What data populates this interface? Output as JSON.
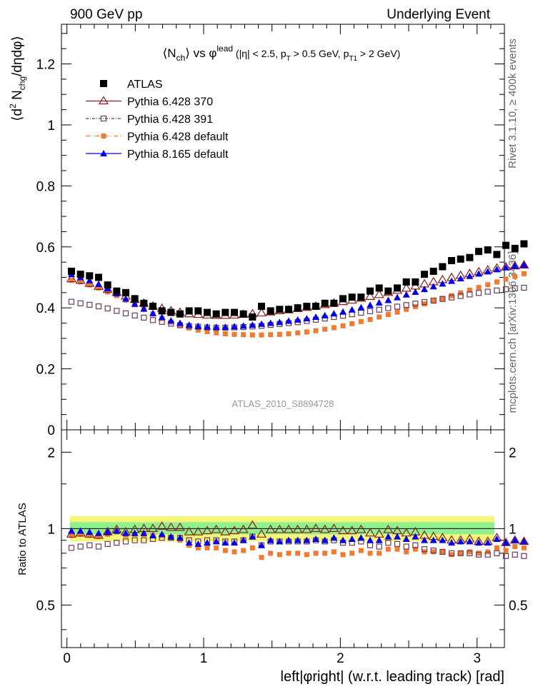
{
  "header": {
    "left": "900 GeV pp",
    "right": "Underlying Event",
    "side_top": "Rivet 3.1.10, ≥ 400k events",
    "side_bottom": "mcplots.cern.ch [arXiv:1306.3436]"
  },
  "chart_data": {
    "type": "scatter",
    "title": "⟨N_ch⟩ vs φ^lead (|η| < 2.5, p_T > 0.5 GeV, p_T1 > 2 GeV)",
    "title_parts": {
      "a": "⟨N",
      "a_sub": "ch",
      "b": "⟩ vs φ",
      "b_sup": "lead",
      "c": " (|η| < 2.5, p",
      "c_sub": "T",
      "d": " > 0.5 GeV, p",
      "d_sub": "T1",
      "e": " > 2 GeV)"
    },
    "ylabel_parts": {
      "a": "⟨d",
      "sup": "2",
      "b": " N",
      "sub": "chg",
      "c": "/dηdφ⟩"
    },
    "xlabel": "left|φright| (w.r.t. leading track) [rad]",
    "ratio_ylabel": "Ratio to ATLAS",
    "analysis_label": "ATLAS_2010_S8894728",
    "main_ylim": [
      0,
      1.33
    ],
    "ratio_ylim": [
      0.34,
      2.45
    ],
    "xlim": [
      -0.04,
      3.2
    ],
    "main_yticks": [
      {
        "v": 0,
        "label": "0"
      },
      {
        "v": 0.2,
        "label": "0.2"
      },
      {
        "v": 0.4,
        "label": "0.4"
      },
      {
        "v": 0.6,
        "label": "0.6"
      },
      {
        "v": 0.8,
        "label": "0.8"
      },
      {
        "v": 1.0,
        "label": "1"
      },
      {
        "v": 1.2,
        "label": "1.2"
      }
    ],
    "ratio_yticks": [
      {
        "v": 0.5,
        "label": "0.5"
      },
      {
        "v": 1.0,
        "label": "1"
      },
      {
        "v": 2.0,
        "label": "2"
      }
    ],
    "xticks": [
      {
        "v": 0,
        "label": "0"
      },
      {
        "v": 1,
        "label": "1"
      },
      {
        "v": 2,
        "label": "2"
      },
      {
        "v": 3,
        "label": "3"
      }
    ],
    "x_start": 0.0331,
    "x_step": 0.0662,
    "series": [
      {
        "name": "ATLAS",
        "color": "#000000",
        "marker": "square-filled",
        "values": [
          0.52,
          0.51,
          0.505,
          0.5,
          0.475,
          0.455,
          0.45,
          0.43,
          0.415,
          0.405,
          0.39,
          0.385,
          0.38,
          0.39,
          0.39,
          0.385,
          0.38,
          0.385,
          0.385,
          0.38,
          0.37,
          0.405,
          0.39,
          0.395,
          0.395,
          0.4,
          0.405,
          0.405,
          0.415,
          0.415,
          0.43,
          0.435,
          0.435,
          0.455,
          0.465,
          0.455,
          0.465,
          0.485,
          0.485,
          0.51,
          0.52,
          0.535,
          0.555,
          0.56,
          0.565,
          0.585,
          0.59,
          0.575,
          0.605,
          0.595,
          0.61
        ],
        "ratio": null
      },
      {
        "name": "Pythia 6.428 370",
        "color": "#8b1a1a",
        "marker": "triangle-open",
        "values": [
          0.495,
          0.49,
          0.48,
          0.47,
          0.46,
          0.45,
          0.438,
          0.427,
          0.415,
          0.405,
          0.398,
          0.39,
          0.385,
          0.38,
          0.378,
          0.376,
          0.375,
          0.375,
          0.376,
          0.378,
          0.38,
          0.383,
          0.386,
          0.39,
          0.393,
          0.397,
          0.401,
          0.405,
          0.41,
          0.415,
          0.42,
          0.425,
          0.431,
          0.437,
          0.443,
          0.45,
          0.457,
          0.464,
          0.471,
          0.478,
          0.485,
          0.492,
          0.499,
          0.506,
          0.512,
          0.518,
          0.524,
          0.53,
          0.534,
          0.537,
          0.54
        ],
        "ratio": [
          0.95,
          0.96,
          0.95,
          0.94,
          0.97,
          0.99,
          0.97,
          0.99,
          1.0,
          1.0,
          1.02,
          1.01,
          1.01,
          0.97,
          0.97,
          0.98,
          0.99,
          0.97,
          0.98,
          0.99,
          1.03,
          0.95,
          0.99,
          0.99,
          0.99,
          0.99,
          0.99,
          1.0,
          0.99,
          1.0,
          0.98,
          0.98,
          0.99,
          0.96,
          0.95,
          0.99,
          0.98,
          0.96,
          0.97,
          0.94,
          0.93,
          0.92,
          0.9,
          0.9,
          0.91,
          0.89,
          0.89,
          0.92,
          0.88,
          0.9,
          0.89
        ]
      },
      {
        "name": "Pythia 6.428 391",
        "color": "#6b3a5a",
        "marker": "square-open",
        "values": [
          0.42,
          0.415,
          0.41,
          0.405,
          0.398,
          0.39,
          0.382,
          0.375,
          0.368,
          0.36,
          0.354,
          0.348,
          0.343,
          0.34,
          0.338,
          0.336,
          0.335,
          0.335,
          0.336,
          0.337,
          0.339,
          0.341,
          0.344,
          0.347,
          0.35,
          0.353,
          0.357,
          0.361,
          0.365,
          0.37,
          0.374,
          0.379,
          0.384,
          0.389,
          0.394,
          0.399,
          0.404,
          0.409,
          0.414,
          0.419,
          0.424,
          0.429,
          0.434,
          0.439,
          0.444,
          0.449,
          0.453,
          0.457,
          0.461,
          0.464,
          0.466
        ],
        "ratio": [
          0.84,
          0.85,
          0.86,
          0.85,
          0.87,
          0.88,
          0.89,
          0.9,
          0.9,
          0.91,
          0.92,
          0.92,
          0.92,
          0.9,
          0.89,
          0.9,
          0.9,
          0.89,
          0.89,
          0.9,
          0.93,
          0.86,
          0.89,
          0.89,
          0.89,
          0.89,
          0.89,
          0.9,
          0.89,
          0.9,
          0.88,
          0.88,
          0.89,
          0.86,
          0.85,
          0.88,
          0.87,
          0.85,
          0.86,
          0.83,
          0.82,
          0.81,
          0.8,
          0.8,
          0.8,
          0.79,
          0.79,
          0.8,
          0.78,
          0.79,
          0.78
        ]
      },
      {
        "name": "Pythia 6.428 default",
        "color": "#f07a30",
        "marker": "square-filled-small",
        "values": [
          0.49,
          0.485,
          0.475,
          0.465,
          0.452,
          0.44,
          0.425,
          0.41,
          0.395,
          0.38,
          0.365,
          0.353,
          0.342,
          0.334,
          0.327,
          0.322,
          0.318,
          0.315,
          0.313,
          0.312,
          0.311,
          0.311,
          0.312,
          0.313,
          0.315,
          0.318,
          0.321,
          0.325,
          0.33,
          0.335,
          0.341,
          0.348,
          0.355,
          0.362,
          0.37,
          0.378,
          0.386,
          0.395,
          0.404,
          0.413,
          0.422,
          0.431,
          0.44,
          0.449,
          0.458,
          0.467,
          0.476,
          0.485,
          0.494,
          0.503,
          0.512
        ],
        "ratio": [
          0.94,
          0.95,
          0.94,
          0.93,
          0.95,
          0.97,
          0.94,
          0.95,
          0.95,
          0.94,
          0.94,
          0.92,
          0.9,
          0.86,
          0.84,
          0.84,
          0.84,
          0.82,
          0.81,
          0.82,
          0.84,
          0.77,
          0.8,
          0.79,
          0.8,
          0.8,
          0.79,
          0.8,
          0.8,
          0.81,
          0.79,
          0.8,
          0.82,
          0.8,
          0.8,
          0.83,
          0.83,
          0.81,
          0.83,
          0.81,
          0.81,
          0.81,
          0.79,
          0.8,
          0.81,
          0.8,
          0.81,
          0.84,
          0.82,
          0.85,
          0.84
        ]
      },
      {
        "name": "Pythia 8.165 default",
        "color": "#0000ee",
        "marker": "triangle-filled",
        "values": [
          0.51,
          0.5,
          0.49,
          0.478,
          0.463,
          0.447,
          0.43,
          0.413,
          0.397,
          0.382,
          0.369,
          0.358,
          0.35,
          0.344,
          0.34,
          0.338,
          0.337,
          0.337,
          0.339,
          0.341,
          0.344,
          0.347,
          0.35,
          0.353,
          0.357,
          0.361,
          0.365,
          0.37,
          0.375,
          0.381,
          0.387,
          0.394,
          0.401,
          0.409,
          0.417,
          0.425,
          0.434,
          0.443,
          0.452,
          0.461,
          0.47,
          0.479,
          0.488,
          0.496,
          0.504,
          0.512,
          0.519,
          0.526,
          0.532,
          0.537,
          0.541
        ],
        "ratio": [
          0.98,
          0.98,
          0.97,
          0.96,
          0.97,
          0.98,
          0.96,
          0.96,
          0.96,
          0.94,
          0.95,
          0.93,
          0.92,
          0.88,
          0.87,
          0.88,
          0.89,
          0.88,
          0.88,
          0.9,
          0.93,
          0.86,
          0.9,
          0.89,
          0.9,
          0.9,
          0.9,
          0.91,
          0.9,
          0.92,
          0.9,
          0.91,
          0.92,
          0.9,
          0.9,
          0.93,
          0.93,
          0.91,
          0.93,
          0.9,
          0.9,
          0.9,
          0.88,
          0.89,
          0.89,
          0.88,
          0.88,
          0.91,
          0.88,
          0.9,
          0.89
        ]
      }
    ],
    "bands": [
      {
        "name": "data-uncertainty-outer",
        "color": "#f4f67a",
        "low": 0.89,
        "high": 1.12
      },
      {
        "name": "data-uncertainty-inner",
        "color": "#8ef08e",
        "low": 0.95,
        "high": 1.06
      }
    ]
  }
}
